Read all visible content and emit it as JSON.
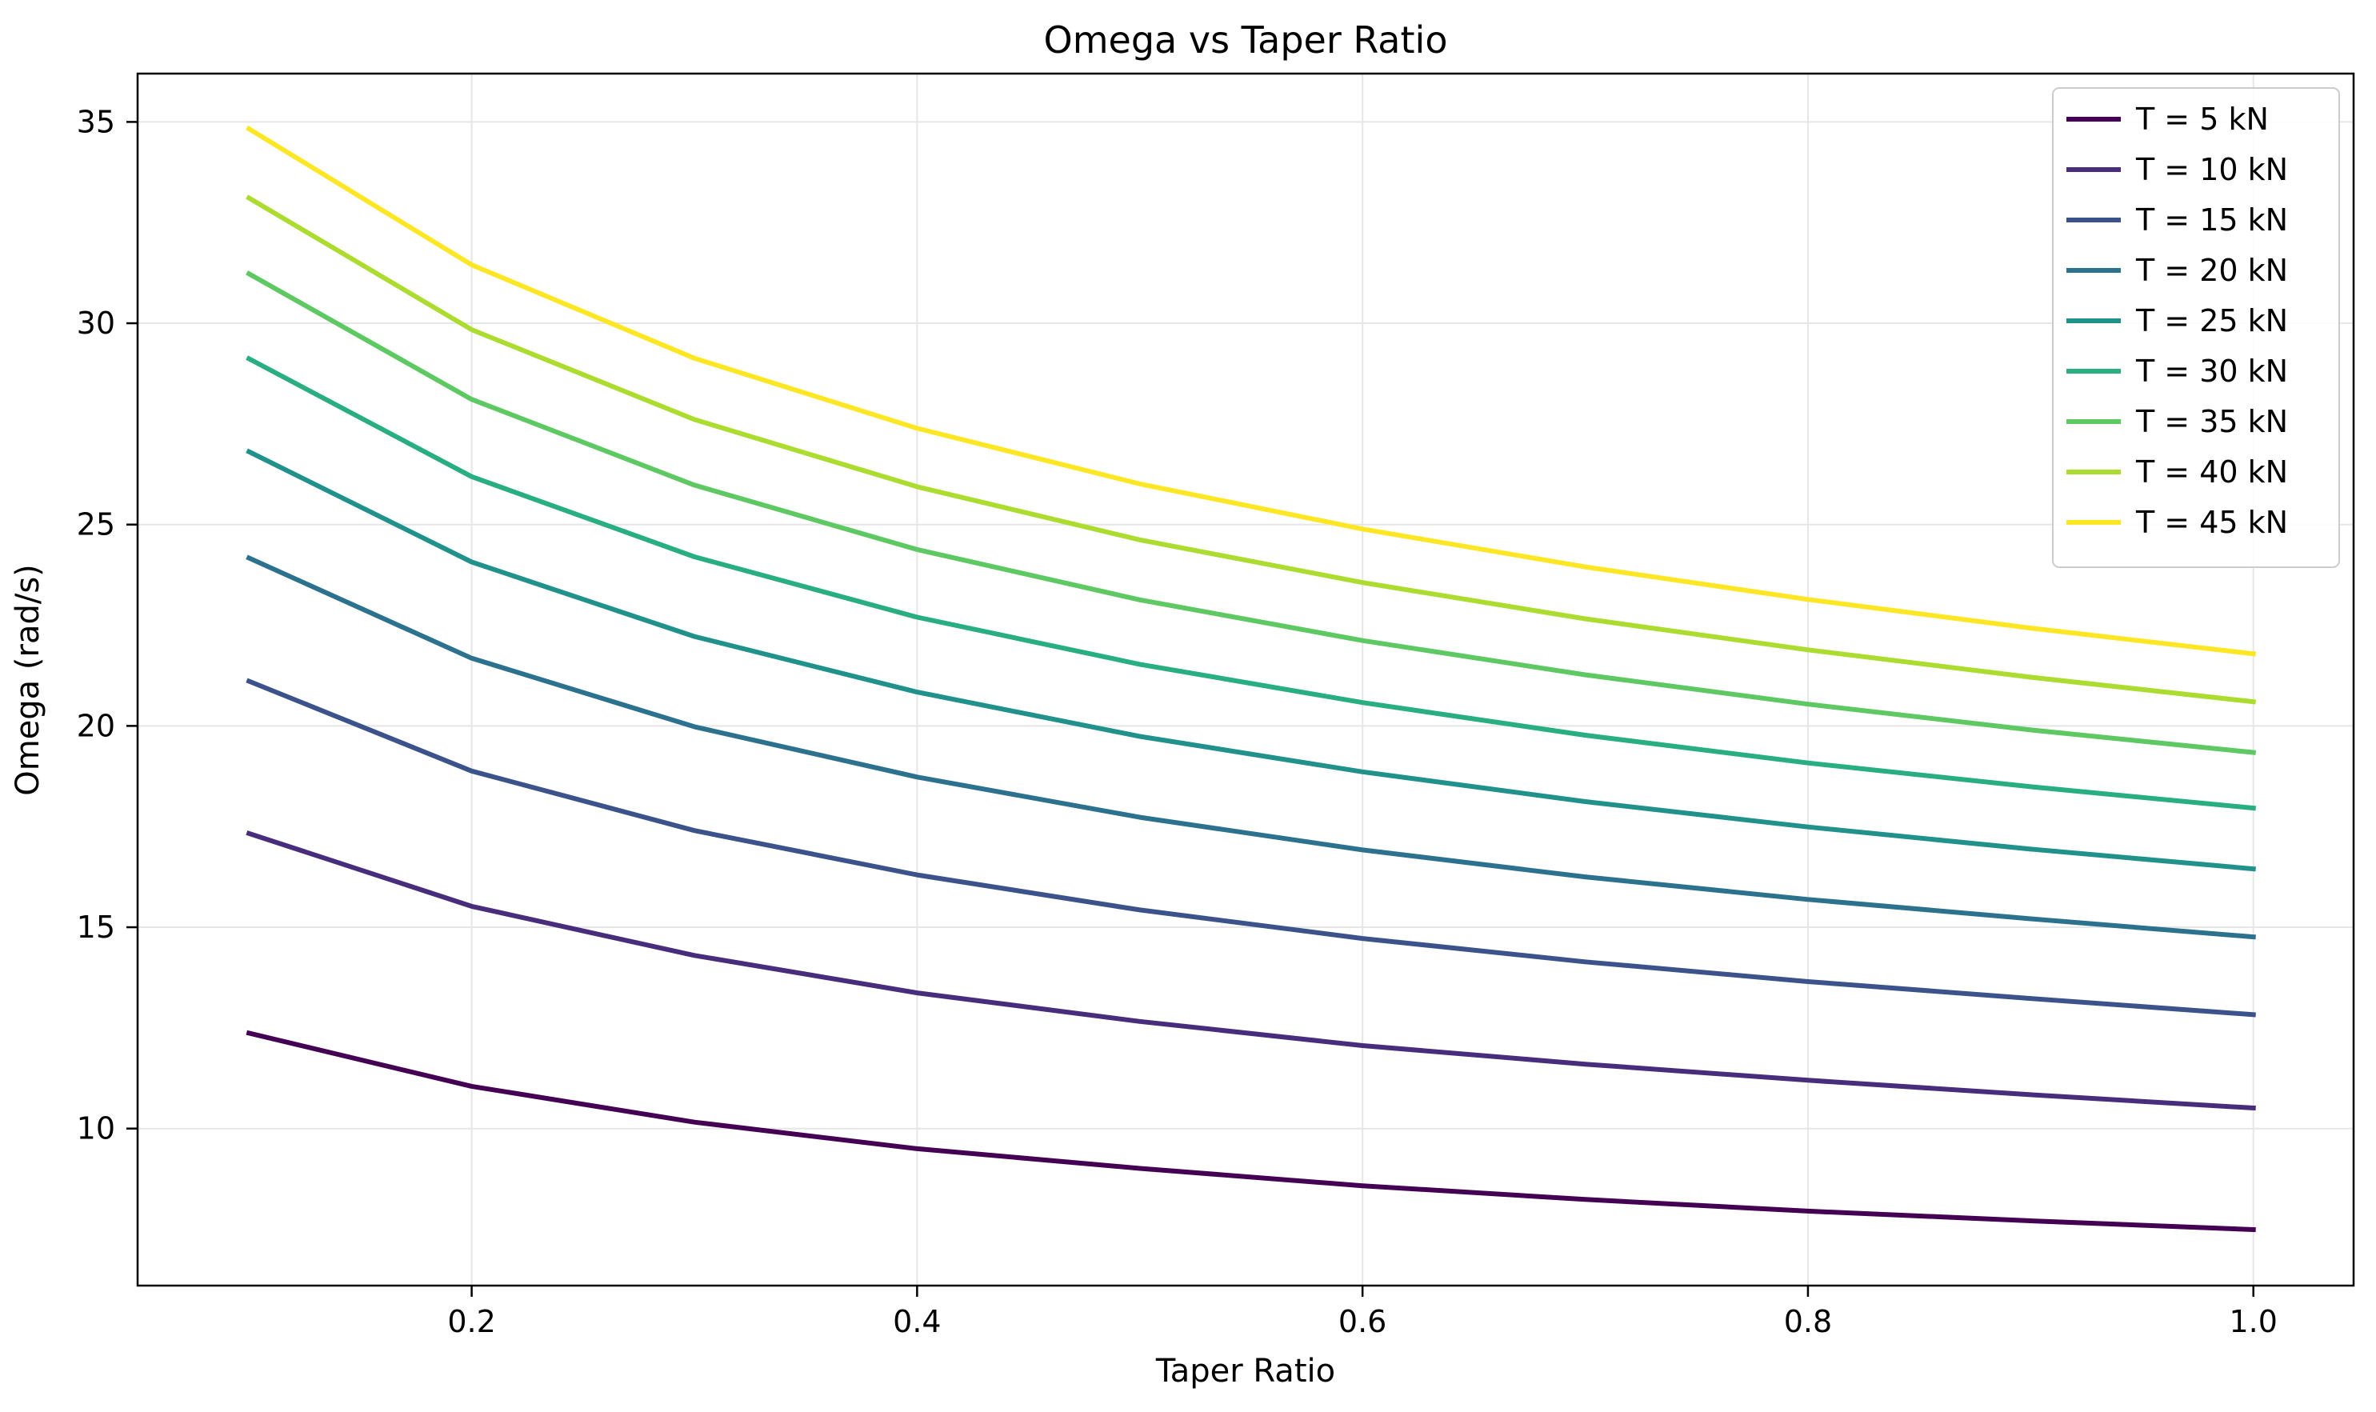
{
  "chart_data": {
    "type": "line",
    "title": "Omega vs Taper Ratio",
    "xlabel": "Taper Ratio",
    "ylabel": "Omega (rad/s)",
    "xlim": [
      0.05,
      1.045
    ],
    "ylim": [
      6.1,
      36.2
    ],
    "xticks": [
      0.2,
      0.4,
      0.6,
      0.8,
      1.0
    ],
    "xtick_labels": [
      "0.2",
      "0.4",
      "0.6",
      "0.8",
      "1.0"
    ],
    "yticks": [
      10,
      15,
      20,
      25,
      30,
      35
    ],
    "ytick_labels": [
      "10",
      "15",
      "20",
      "25",
      "30",
      "35"
    ],
    "grid": true,
    "legend_position": "top-right",
    "x": [
      0.1,
      0.2,
      0.3,
      0.4,
      0.5,
      0.6,
      0.7,
      0.8,
      0.9,
      1.0
    ],
    "series": [
      {
        "name": "T = 5 kN",
        "color": "#440154",
        "values": [
          12.37,
          11.05,
          10.16,
          9.5,
          9.01,
          8.58,
          8.24,
          7.95,
          7.71,
          7.49
        ]
      },
      {
        "name": "T = 10 kN",
        "color": "#472d7b",
        "values": [
          17.33,
          15.52,
          14.3,
          13.37,
          12.66,
          12.06,
          11.6,
          11.2,
          10.84,
          10.51
        ]
      },
      {
        "name": "T = 15 kN",
        "color": "#3b528b",
        "values": [
          21.11,
          18.88,
          17.4,
          16.3,
          15.43,
          14.72,
          14.14,
          13.65,
          13.23,
          12.83
        ]
      },
      {
        "name": "T = 20 kN",
        "color": "#2c728e",
        "values": [
          24.17,
          21.68,
          19.98,
          18.73,
          17.73,
          16.92,
          16.25,
          15.69,
          15.21,
          14.76
        ]
      },
      {
        "name": "T = 25 kN",
        "color": "#21918c",
        "values": [
          26.81,
          24.07,
          22.22,
          20.84,
          19.74,
          18.86,
          18.12,
          17.49,
          16.94,
          16.45
        ]
      },
      {
        "name": "T = 30 kN",
        "color": "#28ae80",
        "values": [
          29.12,
          26.19,
          24.2,
          22.7,
          21.53,
          20.58,
          19.77,
          19.08,
          18.49,
          17.96
        ]
      },
      {
        "name": "T = 35 kN",
        "color": "#5ec962",
        "values": [
          31.23,
          28.11,
          25.98,
          24.38,
          23.13,
          22.12,
          21.27,
          20.54,
          19.9,
          19.34
        ]
      },
      {
        "name": "T = 40 kN",
        "color": "#addc30",
        "values": [
          33.11,
          29.84,
          27.61,
          25.94,
          24.62,
          23.56,
          22.66,
          21.89,
          21.21,
          20.6
        ]
      },
      {
        "name": "T = 45 kN",
        "color": "#fde725",
        "values": [
          34.83,
          31.45,
          29.13,
          27.39,
          26.01,
          24.89,
          23.95,
          23.14,
          22.43,
          21.79
        ]
      }
    ]
  }
}
